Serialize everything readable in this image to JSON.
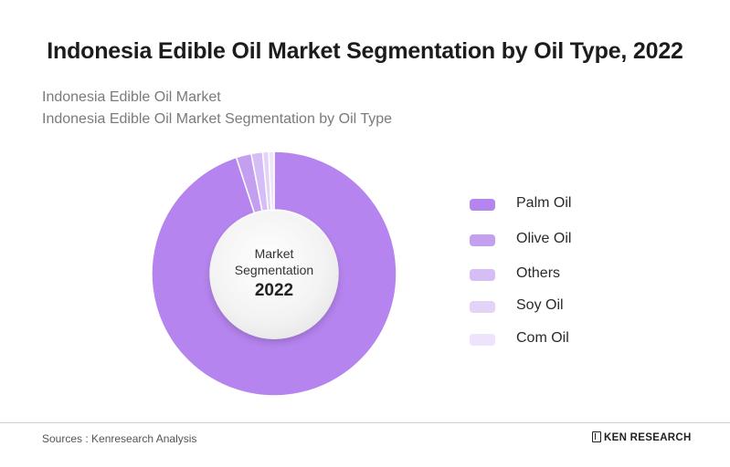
{
  "title": "Indonesia Edible Oil Market Segmentation by Oil Type, 2022",
  "subtitle_1": "Indonesia Edible Oil Market",
  "subtitle_2": "Indonesia Edible Oil Market Segmentation by Oil Type",
  "center": {
    "line1": "Market",
    "line2": "Segmentation",
    "year": "2022"
  },
  "footer": {
    "source": "Sources : Kenresearch Analysis",
    "brand": "KEN RESEARCH"
  },
  "chart_data": {
    "type": "pie",
    "style": "donut",
    "categories": [
      "Palm Oil",
      "Olive Oil",
      "Others",
      "Soy Oil",
      "Com Oil"
    ],
    "values": [
      95.0,
      2.0,
      1.5,
      0.8,
      0.7
    ],
    "colors": [
      "#b584ee",
      "#c49ff0",
      "#d6bdf6",
      "#e4d3f9",
      "#eee3fc"
    ],
    "legend_position": "right",
    "title": "Indonesia Edible Oil Market Segmentation by Oil Type, 2022"
  }
}
